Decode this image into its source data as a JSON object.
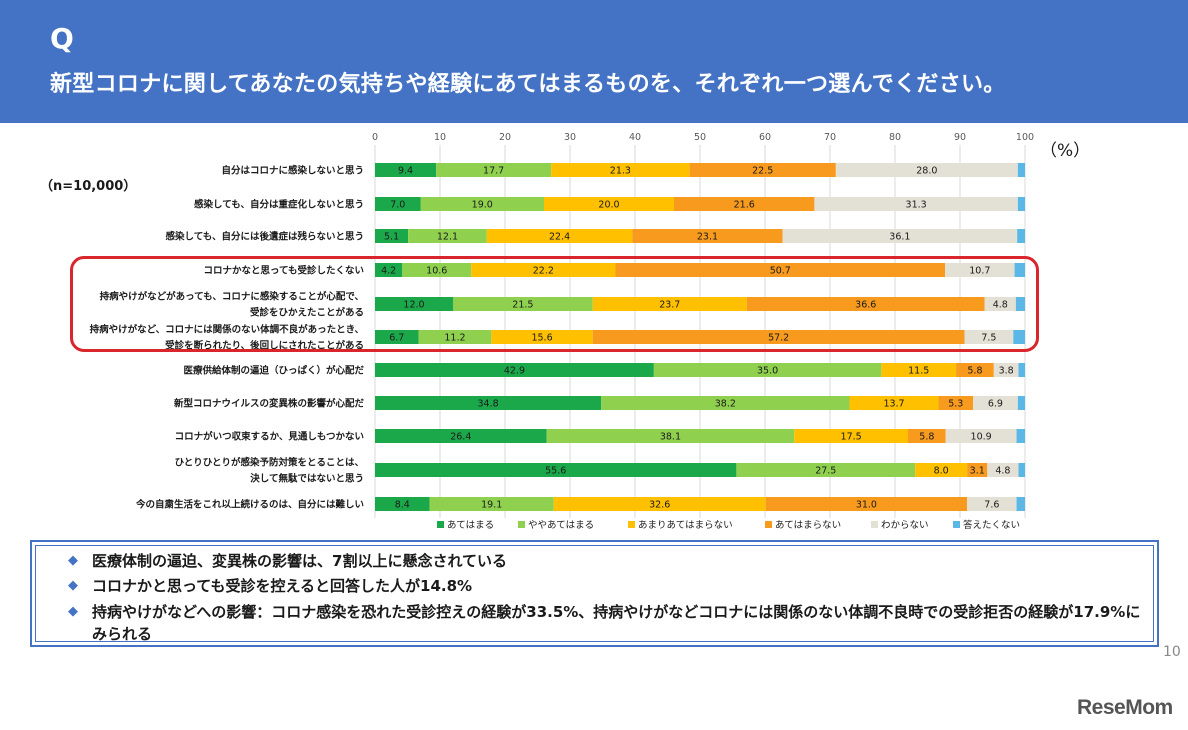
{
  "header": {
    "q_label": "Q",
    "question": "新型コロナに関してあなたの気持ちや経験にあてはまるものを、それぞれ一つ選んでください。"
  },
  "n_label": "（n=10,000）",
  "pct_unit": "（%）",
  "chart_data": {
    "type": "bar",
    "orientation": "horizontal",
    "stacked": true,
    "xlim": [
      0,
      100
    ],
    "x_ticks": [
      0,
      10,
      20,
      30,
      40,
      50,
      60,
      70,
      80,
      90,
      100
    ],
    "legend_position": "bottom",
    "categories": [
      [
        "自分はコロナに感染しないと思う"
      ],
      [
        "感染しても、自分は重症化しないと思う"
      ],
      [
        "感染しても、自分には後遺症は残らないと思う"
      ],
      [
        "コロナかなと思っても受診したくない"
      ],
      [
        "持病やけがなどがあっても、コロナに感染することが心配で、",
        "受診をひかえたことがある"
      ],
      [
        "持病やけがなど、コロナには関係のない体調不良があったとき、",
        "受診を断られたり、後回しにされたことがある"
      ],
      [
        "医療供給体制の逼迫（ひっぱく）が心配だ"
      ],
      [
        "新型コロナウイルスの変異株の影響が心配だ"
      ],
      [
        "コロナがいつ収束するか、見通しもつかない"
      ],
      [
        "ひとりひとりが感染予防対策をとることは、",
        "決して無駄ではないと思う"
      ],
      [
        "今の自粛生活をこれ以上続けるのは、自分には難しい"
      ]
    ],
    "series": [
      {
        "name": "あてはまる",
        "color": "#1aa84a",
        "values": [
          9.4,
          7.0,
          5.1,
          4.2,
          12.0,
          6.7,
          42.9,
          34.8,
          26.4,
          55.6,
          8.4
        ]
      },
      {
        "name": "ややあてはまる",
        "color": "#8fd14f",
        "values": [
          17.7,
          19.0,
          12.1,
          10.6,
          21.5,
          11.2,
          35.0,
          38.2,
          38.1,
          27.5,
          19.1
        ]
      },
      {
        "name": "あまりあてはまらない",
        "color": "#ffc000",
        "values": [
          21.3,
          20.0,
          22.4,
          22.2,
          23.7,
          15.6,
          11.5,
          13.7,
          17.5,
          8.0,
          32.6
        ]
      },
      {
        "name": "あてはまらない",
        "color": "#f79a1e",
        "values": [
          22.5,
          21.6,
          23.1,
          50.7,
          36.6,
          57.2,
          5.8,
          5.3,
          5.8,
          3.1,
          31.0
        ]
      },
      {
        "name": "わからない",
        "color": "#e3e0d6",
        "values": [
          28.0,
          31.3,
          36.1,
          10.7,
          4.8,
          7.5,
          3.8,
          6.9,
          10.9,
          4.8,
          7.6
        ]
      },
      {
        "name": "答えたくない",
        "color": "#5bb8e6",
        "values": [
          1.1,
          1.1,
          1.2,
          1.6,
          1.4,
          1.8,
          1.0,
          1.1,
          1.3,
          1.0,
          1.3
        ]
      }
    ],
    "printed_labels": [
      [
        "9.4",
        "17.7",
        "21.3",
        "22.5",
        "28.0",
        ""
      ],
      [
        "7.0",
        "19.0",
        "20.0",
        "21.6",
        "31.3",
        ""
      ],
      [
        "5.1",
        "12.1",
        "22.4",
        "23.1",
        "36.1",
        ""
      ],
      [
        "4.2",
        "10.6",
        "22.2",
        "50.7",
        "10.7",
        ""
      ],
      [
        "12.0",
        "21.5",
        "23.7",
        "36.6",
        "4.8",
        ""
      ],
      [
        "6.7",
        "11.2",
        "15.6",
        "57.2",
        "7.5",
        ""
      ],
      [
        "42.9",
        "35.0",
        "11.5",
        "5.8",
        "3.8",
        ""
      ],
      [
        "34.8",
        "38.2",
        "13.7",
        "5.3",
        "6.9",
        ""
      ],
      [
        "26.4",
        "38.1",
        "17.5",
        "5.8",
        "10.9",
        ""
      ],
      [
        "55.6",
        "27.5",
        "8.0",
        "3.1",
        "4.8",
        ""
      ],
      [
        "8.4",
        "19.1",
        "32.6",
        "31.0",
        "7.6",
        ""
      ]
    ]
  },
  "summary": [
    "医療体制の逼迫、変異株の影響は、7割以上に懸念されている",
    "コロナかと思っても受診を控えると回答した人が14.8%",
    "持病やけがなどへの影響：コロナ感染を恐れた受診控えの経験が33.5%、持病やけがなどコロナには関係のない体調不良時での受診拒否の経験が17.9%にみられる"
  ],
  "bullet_mark": "◆",
  "page_number": "10",
  "logo": "ReseMom"
}
